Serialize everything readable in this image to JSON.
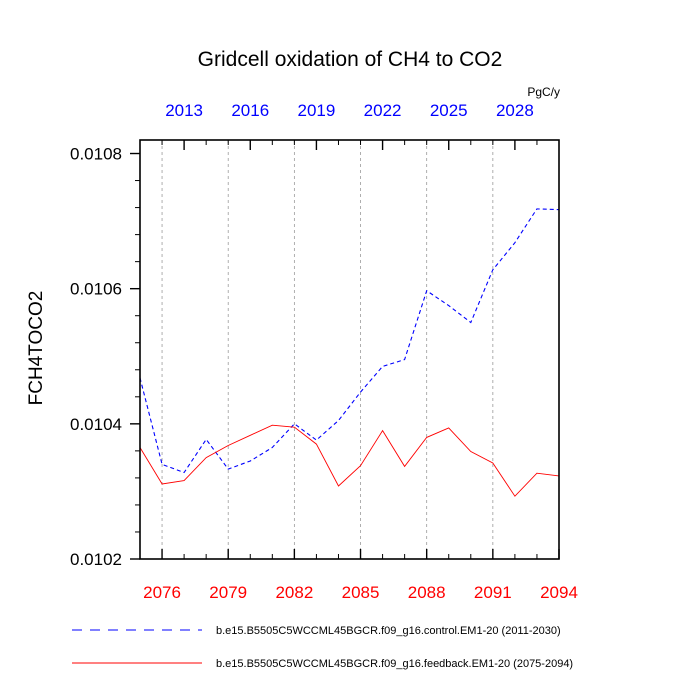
{
  "chart_data": {
    "type": "line",
    "title": "Gridcell oxidation of CH4 to CO2",
    "ylabel": "FCH4TOCO2",
    "units": "PgC/y",
    "ylim": [
      0.0102,
      0.01082
    ],
    "yticks": [
      0.0102,
      0.0104,
      0.0106,
      0.0108
    ],
    "ytick_labels": [
      "0.0102",
      "0.0104",
      "0.0106",
      "0.0108"
    ],
    "bottom_axis": {
      "range": [
        2075,
        2094
      ],
      "ticks": [
        2076,
        2079,
        2082,
        2085,
        2088,
        2091,
        2094
      ],
      "labels": [
        "2076",
        "2079",
        "2082",
        "2085",
        "2088",
        "2091",
        "2094"
      ],
      "color": "#ff0000"
    },
    "top_axis": {
      "range": [
        2011,
        2030
      ],
      "ticks": [
        2013,
        2016,
        2019,
        2022,
        2025,
        2028
      ],
      "labels": [
        "2013",
        "2016",
        "2019",
        "2022",
        "2025",
        "2028"
      ],
      "color": "#0000ff"
    },
    "gridlines": [
      2076,
      2079,
      2082,
      2085,
      2088,
      2091
    ],
    "series": [
      {
        "name": "b.e15.B5505C5WCCML45BGCR.f09_g16.control.EM1-20 (2011-2030)",
        "axis": "top",
        "color": "#0000ff",
        "style": "dashed",
        "x": [
          2011,
          2012,
          2013,
          2014,
          2015,
          2016,
          2017,
          2018,
          2019,
          2020,
          2021,
          2022,
          2023,
          2024,
          2025,
          2026,
          2027,
          2028,
          2029,
          2030
        ],
        "values": [
          0.010468,
          0.01034,
          0.010328,
          0.010377,
          0.010333,
          0.010345,
          0.010365,
          0.0104,
          0.010376,
          0.010405,
          0.010447,
          0.010485,
          0.010495,
          0.010597,
          0.010575,
          0.01055,
          0.010628,
          0.010668,
          0.010718,
          0.010717
        ]
      },
      {
        "name": "b.e15.B5505C5WCCML45BGCR.f09_g16.feedback.EM1-20 (2075-2094)",
        "axis": "bottom",
        "color": "#ff0000",
        "style": "solid",
        "x": [
          2075,
          2076,
          2077,
          2078,
          2079,
          2080,
          2081,
          2082,
          2083,
          2084,
          2085,
          2086,
          2087,
          2088,
          2089,
          2090,
          2091,
          2092,
          2093,
          2094
        ],
        "values": [
          0.010365,
          0.010311,
          0.010316,
          0.01035,
          0.010368,
          0.010383,
          0.010398,
          0.010395,
          0.01037,
          0.010308,
          0.010338,
          0.01039,
          0.010337,
          0.01038,
          0.010394,
          0.010359,
          0.010342,
          0.010293,
          0.010327,
          0.010323
        ]
      }
    ]
  }
}
